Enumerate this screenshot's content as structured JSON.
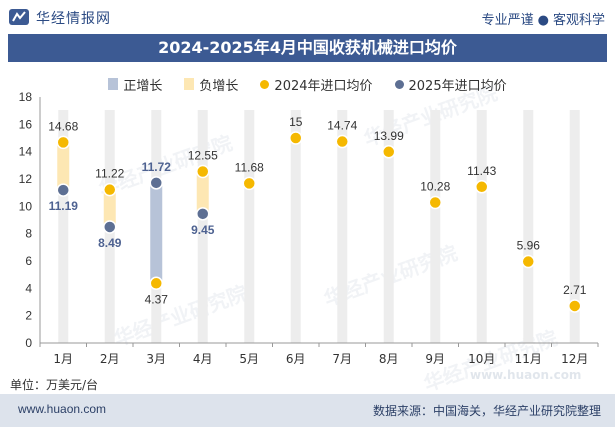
{
  "header": {
    "brand": "华经情报网",
    "slogan_left": "专业严谨",
    "slogan_right": "客观科学"
  },
  "title": "2024-2025年4月中国收获机械进口均价",
  "legend": {
    "pos_growth": "正增长",
    "neg_growth": "负增长",
    "series_2024": "2024年进口均价",
    "series_2025": "2025年进口均价"
  },
  "unit": "单位：万美元/台",
  "footer": {
    "site": "www.huaon.com",
    "source": "数据来源：中国海关，华经产业研究院整理"
  },
  "watermark": "华经产业研究院",
  "watermark_site": "www.huaon.com",
  "colors": {
    "title_bg": "#3c5a93",
    "series_2024": "#f5b800",
    "series_2025": "#5d6f93",
    "positive_growth": "#b7c3d8",
    "negative_growth": "#fde7b3",
    "column_bg": "#ededed",
    "footer_bg": "#dde3ec"
  },
  "chart_data": {
    "type": "scatter",
    "categories": [
      "1月",
      "2月",
      "3月",
      "4月",
      "5月",
      "6月",
      "7月",
      "8月",
      "9月",
      "10月",
      "11月",
      "12月"
    ],
    "ylim": [
      0,
      18
    ],
    "yticks": [
      0,
      2,
      4,
      6,
      8,
      10,
      12,
      14,
      16,
      18
    ],
    "series": [
      {
        "name": "2024年进口均价",
        "values": [
          14.68,
          11.22,
          4.37,
          12.55,
          11.68,
          15,
          14.74,
          13.99,
          10.28,
          11.43,
          5.96,
          2.71
        ]
      },
      {
        "name": "2025年进口均价",
        "values": [
          11.19,
          8.49,
          11.72,
          9.45,
          null,
          null,
          null,
          null,
          null,
          null,
          null,
          null
        ]
      }
    ],
    "growth_bars": [
      {
        "category": "1月",
        "type": "负增长"
      },
      {
        "category": "2月",
        "type": "负增长"
      },
      {
        "category": "3月",
        "type": "正增长"
      },
      {
        "category": "4月",
        "type": "负增长"
      }
    ],
    "grid": false,
    "legend_position": "top"
  }
}
